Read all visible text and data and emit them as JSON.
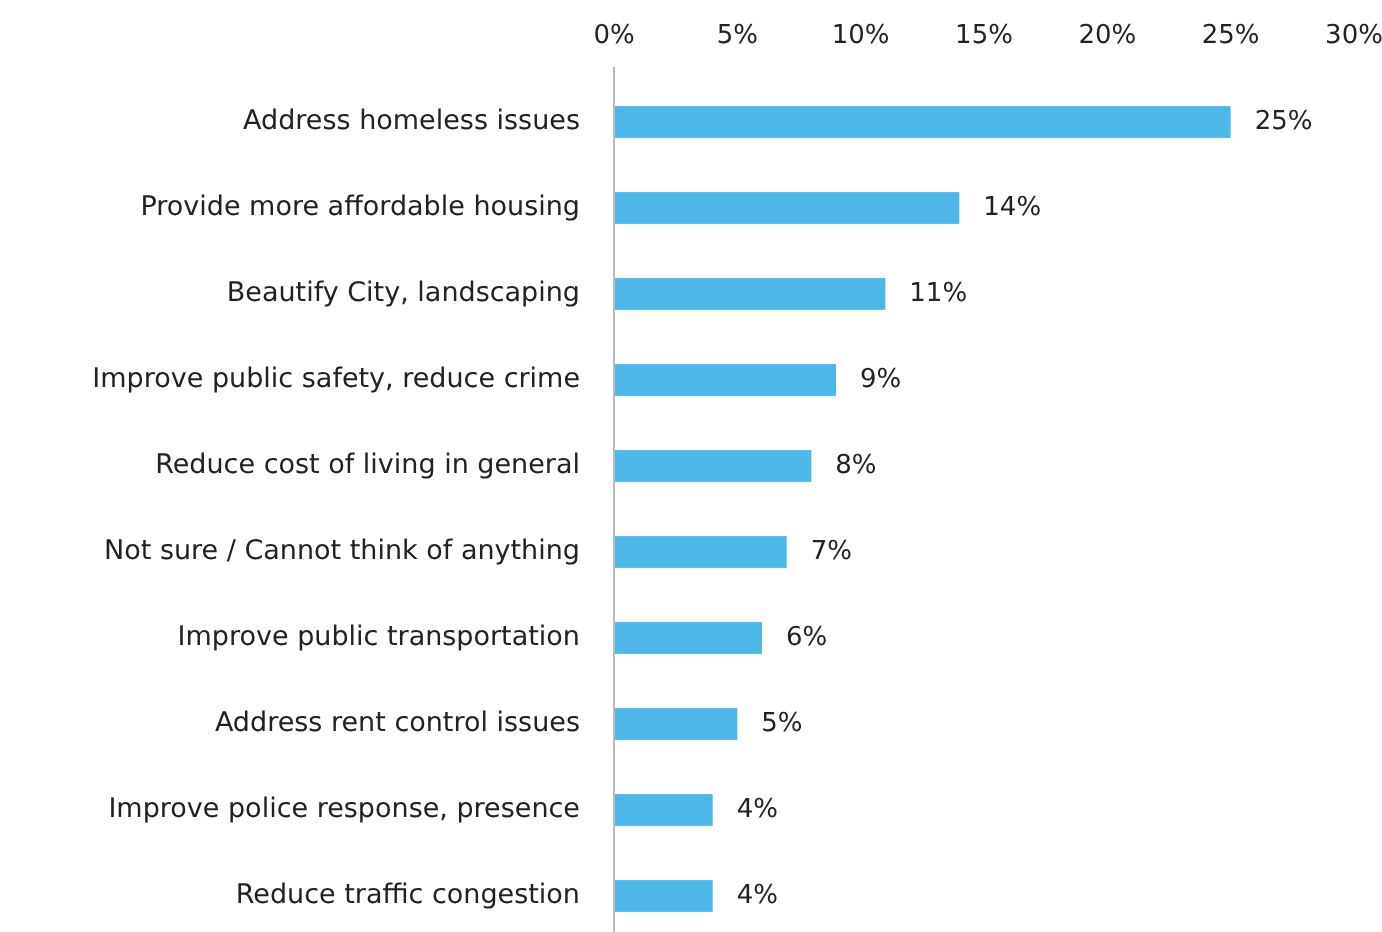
{
  "chart_data": {
    "type": "bar",
    "orientation": "horizontal",
    "categories": [
      "Address homeless issues",
      "Provide more affordable housing",
      "Beautify City, landscaping",
      "Improve public safety, reduce crime",
      "Reduce cost of living in general",
      "Not sure / Cannot think of anything",
      "Improve public transportation",
      "Address rent control issues",
      "Improve police response, presence",
      "Reduce traffic congestion"
    ],
    "values": [
      25,
      14,
      11,
      9,
      8,
      7,
      6,
      5,
      4,
      4
    ],
    "value_labels": [
      "25%",
      "14%",
      "11%",
      "9%",
      "8%",
      "7%",
      "6%",
      "5%",
      "4%",
      "4%"
    ],
    "color": "#4db8e8",
    "xlim": [
      0,
      30
    ],
    "xticks": [
      {
        "value": 0,
        "label": "0%"
      },
      {
        "value": 5,
        "label": "5%"
      },
      {
        "value": 10,
        "label": "10%"
      },
      {
        "value": 15,
        "label": "15%"
      },
      {
        "value": 20,
        "label": "20%"
      },
      {
        "value": 25,
        "label": "25%"
      },
      {
        "value": 30,
        "label": "30%"
      }
    ],
    "grid": false
  }
}
